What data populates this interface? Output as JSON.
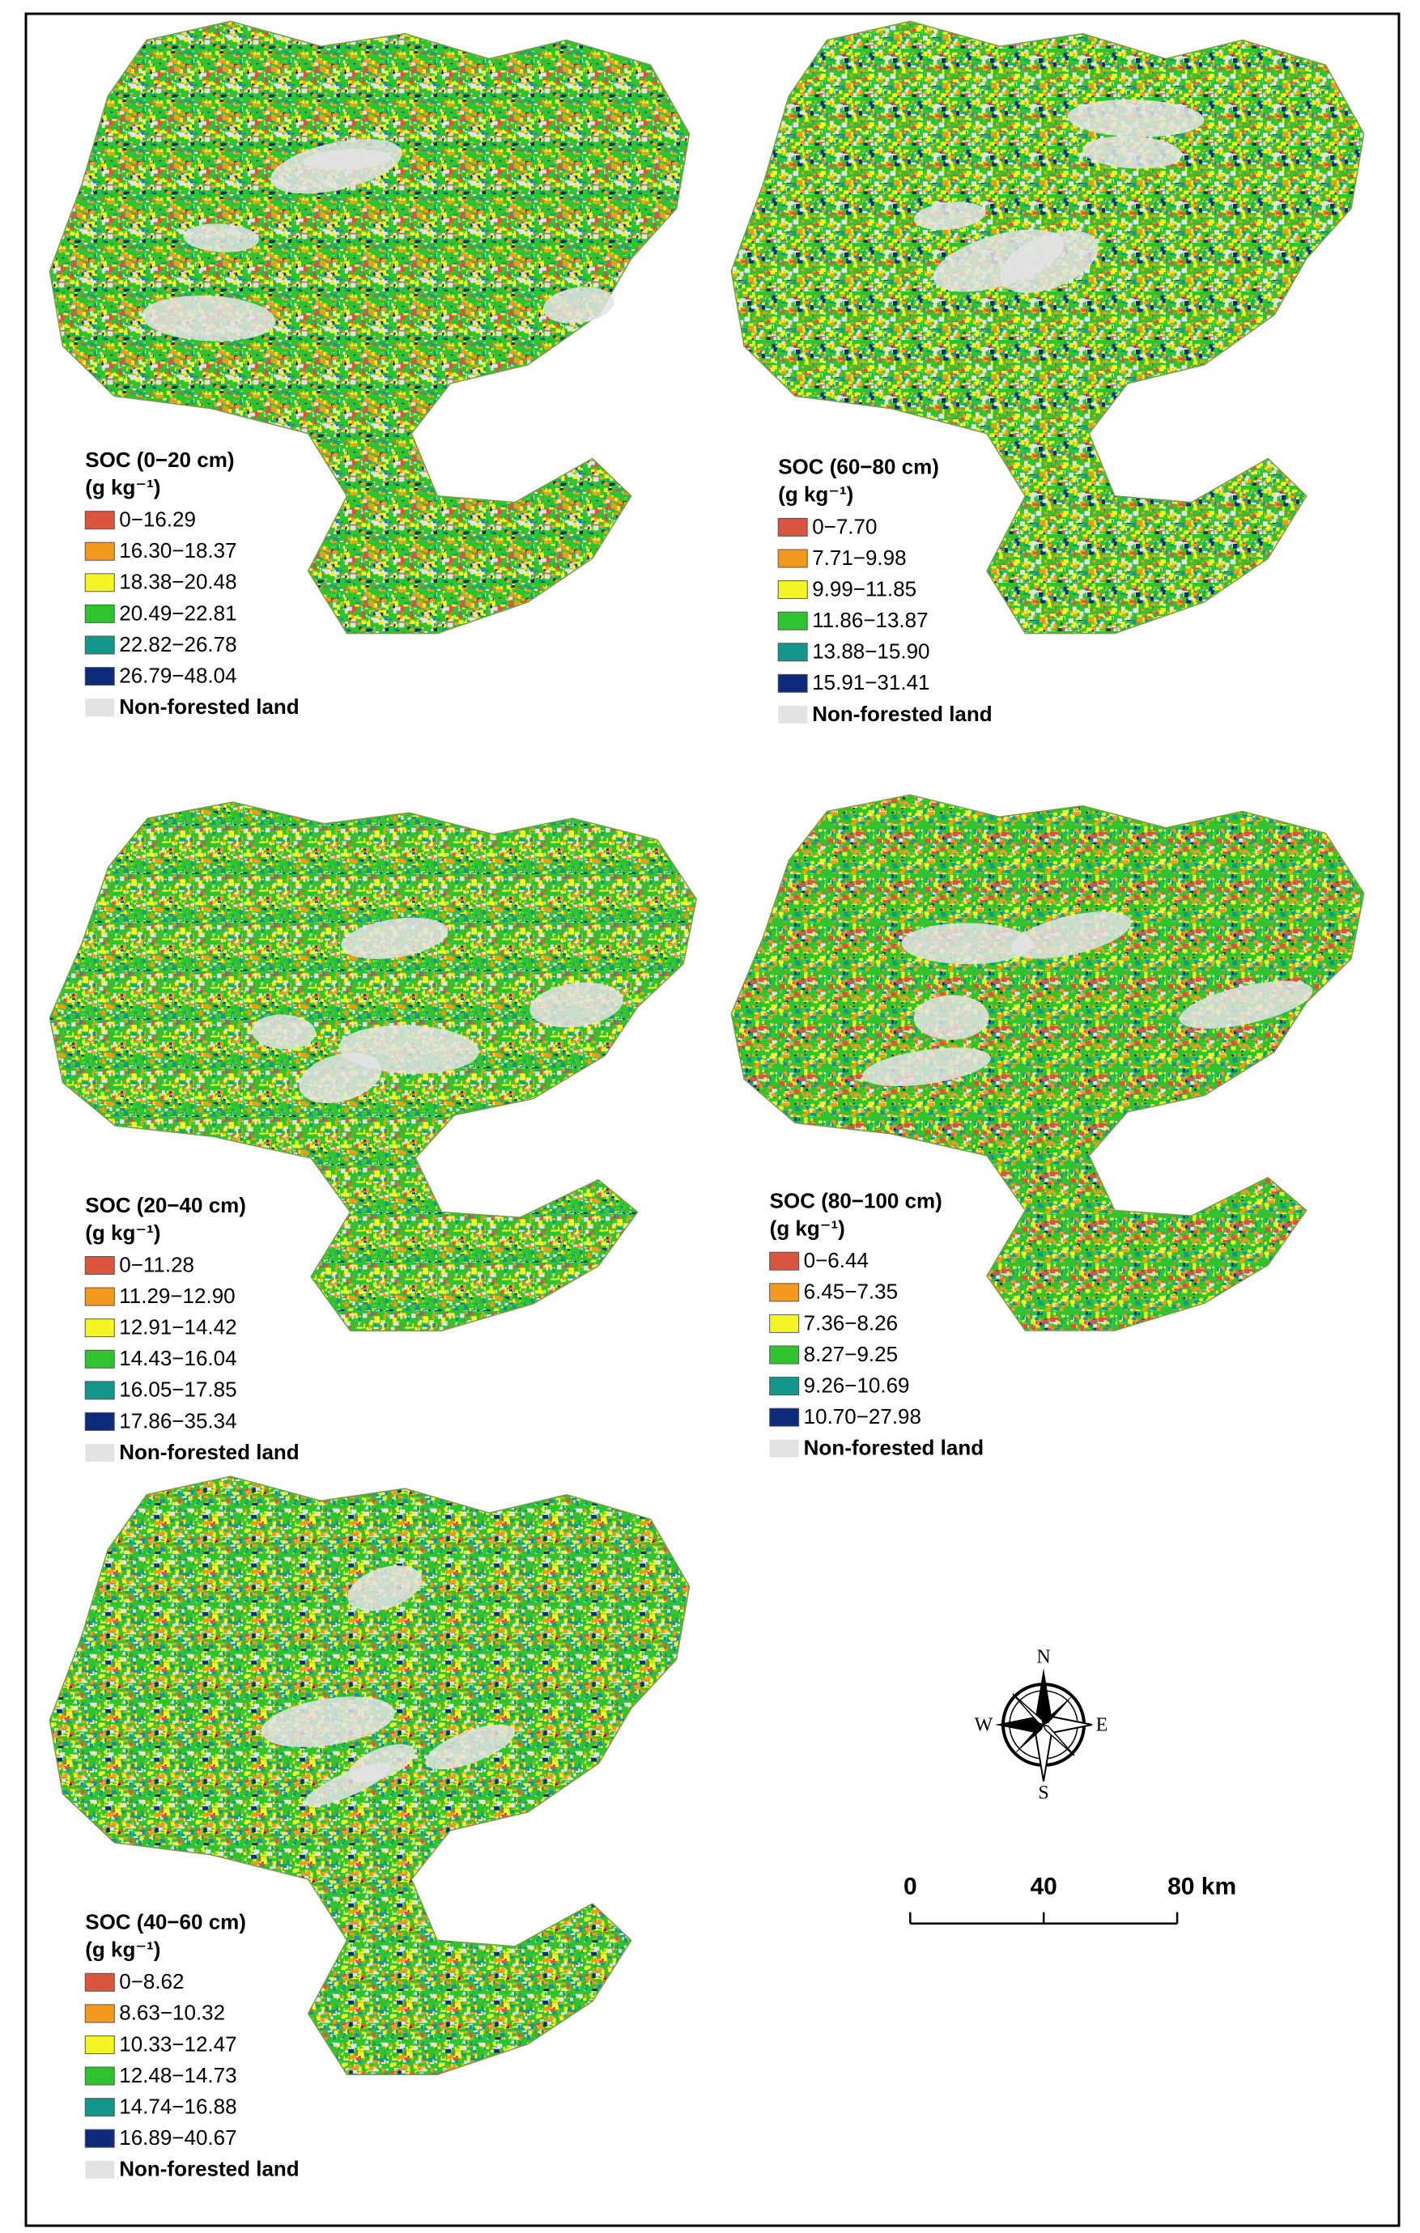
{
  "maps": [
    {
      "title": "SOC (0−20 cm)",
      "unit": "(g kg⁻¹)",
      "classes": [
        {
          "label": "0−16.29",
          "color": "#d9553e"
        },
        {
          "label": "16.30−18.37",
          "color": "#f39a1e"
        },
        {
          "label": "18.38−20.48",
          "color": "#f5f526"
        },
        {
          "label": "20.49−22.81",
          "color": "#2fc42f"
        },
        {
          "label": "22.82−26.78",
          "color": "#14968a"
        },
        {
          "label": "26.79−48.04",
          "color": "#0e2a7a"
        }
      ],
      "nonforest": {
        "label": "Non-forested land",
        "color": "#e3e3e3"
      }
    },
    {
      "title": "SOC (60−80 cm)",
      "unit": "(g kg⁻¹)",
      "classes": [
        {
          "label": "0−7.70",
          "color": "#d9553e"
        },
        {
          "label": "7.71−9.98",
          "color": "#f39a1e"
        },
        {
          "label": "9.99−11.85",
          "color": "#f5f526"
        },
        {
          "label": "11.86−13.87",
          "color": "#2fc42f"
        },
        {
          "label": "13.88−15.90",
          "color": "#14968a"
        },
        {
          "label": "15.91−31.41",
          "color": "#0e2a7a"
        }
      ],
      "nonforest": {
        "label": "Non-forested land",
        "color": "#e3e3e3"
      }
    },
    {
      "title": "SOC (20−40 cm)",
      "unit": "(g kg⁻¹)",
      "classes": [
        {
          "label": "0−11.28",
          "color": "#d9553e"
        },
        {
          "label": "11.29−12.90",
          "color": "#f39a1e"
        },
        {
          "label": "12.91−14.42",
          "color": "#f5f526"
        },
        {
          "label": "14.43−16.04",
          "color": "#2fc42f"
        },
        {
          "label": "16.05−17.85",
          "color": "#14968a"
        },
        {
          "label": "17.86−35.34",
          "color": "#0e2a7a"
        }
      ],
      "nonforest": {
        "label": "Non-forested land",
        "color": "#e3e3e3"
      }
    },
    {
      "title": "SOC (80−100 cm)",
      "unit": "(g kg⁻¹)",
      "classes": [
        {
          "label": "0−6.44",
          "color": "#d9553e"
        },
        {
          "label": "6.45−7.35",
          "color": "#f39a1e"
        },
        {
          "label": "7.36−8.26",
          "color": "#f5f526"
        },
        {
          "label": "8.27−9.25",
          "color": "#2fc42f"
        },
        {
          "label": "9.26−10.69",
          "color": "#14968a"
        },
        {
          "label": "10.70−27.98",
          "color": "#0e2a7a"
        }
      ],
      "nonforest": {
        "label": "Non-forested land",
        "color": "#e3e3e3"
      }
    },
    {
      "title": "SOC (40−60 cm)",
      "unit": "(g kg⁻¹)",
      "classes": [
        {
          "label": "0−8.62",
          "color": "#d9553e"
        },
        {
          "label": "8.63−10.32",
          "color": "#f39a1e"
        },
        {
          "label": "10.33−12.47",
          "color": "#f5f526"
        },
        {
          "label": "12.48−14.73",
          "color": "#2fc42f"
        },
        {
          "label": "14.74−16.88",
          "color": "#14968a"
        },
        {
          "label": "16.89−40.67",
          "color": "#0e2a7a"
        }
      ],
      "nonforest": {
        "label": "Non-forested land",
        "color": "#e3e3e3"
      }
    }
  ],
  "compass": {
    "n": "N",
    "s": "S",
    "w": "W",
    "e": "E"
  },
  "scale_bar": {
    "ticks": [
      0,
      40,
      {
        "value": 80,
        "label": "80 km"
      }
    ]
  }
}
